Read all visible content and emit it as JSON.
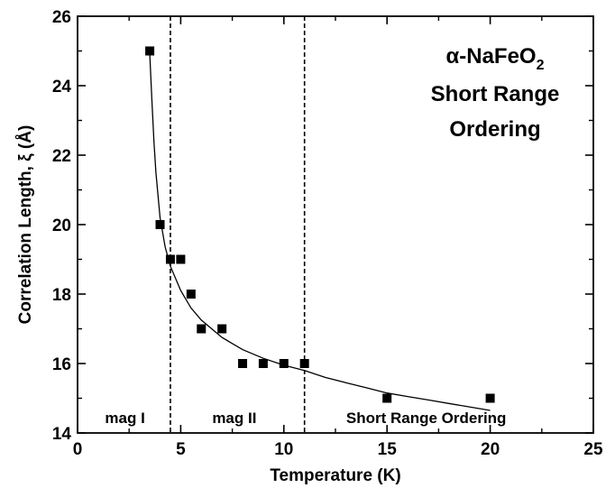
{
  "chart_data": {
    "type": "scatter",
    "title_lines": [
      {
        "prefix": "α-NaFeO",
        "subscript": "2"
      },
      {
        "text": "Short Range"
      },
      {
        "text": "Ordering"
      }
    ],
    "xlabel": "Temperature (K)",
    "ylabel": "Correlation Length, ξ (Å)",
    "xlim": [
      0,
      25
    ],
    "ylim": [
      14,
      26
    ],
    "x_ticks": [
      0,
      5,
      10,
      15,
      20,
      25
    ],
    "y_ticks": [
      14,
      16,
      18,
      20,
      22,
      24,
      26
    ],
    "series": [
      {
        "marker": "square",
        "color": "#000000",
        "points": [
          {
            "x": 3.5,
            "y": 25
          },
          {
            "x": 4.0,
            "y": 20
          },
          {
            "x": 4.5,
            "y": 19
          },
          {
            "x": 5.0,
            "y": 19
          },
          {
            "x": 5.5,
            "y": 18
          },
          {
            "x": 6.0,
            "y": 17
          },
          {
            "x": 7.0,
            "y": 17
          },
          {
            "x": 8.0,
            "y": 16
          },
          {
            "x": 9.0,
            "y": 16
          },
          {
            "x": 10.0,
            "y": 16
          },
          {
            "x": 11.0,
            "y": 16
          },
          {
            "x": 15.0,
            "y": 15
          },
          {
            "x": 20.0,
            "y": 15
          }
        ]
      }
    ],
    "fit_curve": [
      {
        "x": 3.5,
        "y": 24.9
      },
      {
        "x": 3.6,
        "y": 23.6
      },
      {
        "x": 3.7,
        "y": 22.4
      },
      {
        "x": 3.8,
        "y": 21.5
      },
      {
        "x": 4.0,
        "y": 20.2
      },
      {
        "x": 4.25,
        "y": 19.35
      },
      {
        "x": 4.5,
        "y": 18.8
      },
      {
        "x": 5.0,
        "y": 18.1
      },
      {
        "x": 5.5,
        "y": 17.6
      },
      {
        "x": 6.0,
        "y": 17.25
      },
      {
        "x": 7.0,
        "y": 16.75
      },
      {
        "x": 8.0,
        "y": 16.4
      },
      {
        "x": 9.0,
        "y": 16.15
      },
      {
        "x": 10.0,
        "y": 15.95
      },
      {
        "x": 11.0,
        "y": 15.8
      },
      {
        "x": 12.0,
        "y": 15.6
      },
      {
        "x": 13.0,
        "y": 15.45
      },
      {
        "x": 14.0,
        "y": 15.3
      },
      {
        "x": 15.0,
        "y": 15.15
      },
      {
        "x": 16.0,
        "y": 15.05
      },
      {
        "x": 17.0,
        "y": 14.95
      },
      {
        "x": 18.0,
        "y": 14.85
      },
      {
        "x": 19.0,
        "y": 14.75
      },
      {
        "x": 20.0,
        "y": 14.65
      }
    ],
    "vlines": [
      {
        "x": 4.5,
        "style": "dashed"
      },
      {
        "x": 11.0,
        "style": "dashed"
      }
    ],
    "regions": [
      {
        "label": "mag I",
        "x": 2.3
      },
      {
        "label": "mag II",
        "x": 7.6
      },
      {
        "label": "Short Range Ordering",
        "x": 16.9
      }
    ],
    "grid": false
  }
}
